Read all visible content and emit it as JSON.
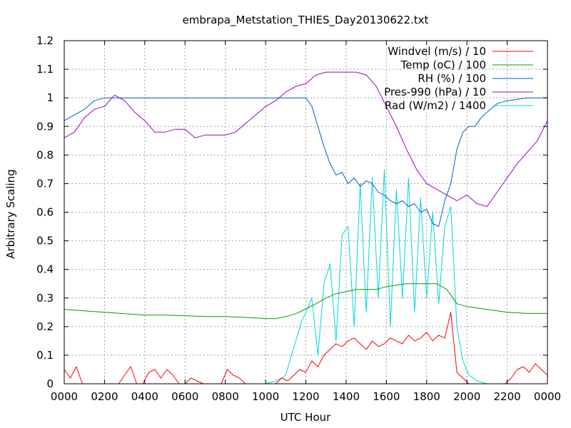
{
  "chart_data": {
    "type": "line",
    "title": "embrapa_Metstation_THIES_Day20130622.txt",
    "xlabel": "UTC Hour",
    "ylabel": "Arbitrary Scaling",
    "xlim": [
      0,
      2400
    ],
    "ylim": [
      0,
      1.2
    ],
    "grid": true,
    "legend_position": "top-right",
    "x_tick_labels": [
      "0000",
      "0200",
      "0400",
      "0600",
      "0800",
      "1000",
      "1200",
      "1400",
      "1600",
      "1800",
      "2000",
      "2200",
      "0000"
    ],
    "y_tick_labels": [
      "0",
      "0.1",
      "0.2",
      "0.3",
      "0.4",
      "0.5",
      "0.6",
      "0.7",
      "0.8",
      "0.9",
      "1",
      "1.1",
      "1.2"
    ],
    "series": [
      {
        "name": "Windvel (m/s) / 10",
        "color": "#ff0000",
        "x": [
          0,
          30,
          60,
          90,
          120,
          150,
          180,
          210,
          240,
          270,
          300,
          330,
          360,
          390,
          420,
          450,
          480,
          510,
          540,
          570,
          600,
          630,
          660,
          690,
          720,
          750,
          780,
          810,
          840,
          870,
          900,
          930,
          960,
          990,
          1020,
          1050,
          1080,
          1110,
          1140,
          1170,
          1200,
          1230,
          1260,
          1290,
          1320,
          1350,
          1380,
          1410,
          1440,
          1470,
          1500,
          1530,
          1560,
          1590,
          1620,
          1650,
          1680,
          1710,
          1740,
          1770,
          1800,
          1830,
          1860,
          1890,
          1920,
          1950,
          1980,
          2010,
          2040,
          2070,
          2100,
          2130,
          2160,
          2190,
          2220,
          2250,
          2280,
          2310,
          2340,
          2370,
          2400
        ],
        "y": [
          0.05,
          0.02,
          0.06,
          0,
          0,
          0,
          0,
          0,
          0,
          0,
          0.03,
          0.06,
          0,
          0,
          0.04,
          0.05,
          0.02,
          0.05,
          0.03,
          0,
          0,
          0.02,
          0.01,
          0,
          0,
          0,
          0,
          0.05,
          0.03,
          0.02,
          0,
          0,
          0,
          0,
          0,
          0,
          0.02,
          0.01,
          0.03,
          0.05,
          0.04,
          0.08,
          0.06,
          0.1,
          0.12,
          0.14,
          0.13,
          0.15,
          0.16,
          0.14,
          0.12,
          0.15,
          0.13,
          0.14,
          0.16,
          0.15,
          0.14,
          0.17,
          0.15,
          0.16,
          0.18,
          0.15,
          0.17,
          0.16,
          0.25,
          0.04,
          0.02,
          0,
          0,
          0,
          0,
          0,
          0,
          0,
          0.02,
          0.05,
          0.06,
          0.04,
          0.07,
          0.05,
          0.03
        ]
      },
      {
        "name": "Temp (oC) / 100",
        "color": "#00a000",
        "x": [
          0,
          100,
          200,
          300,
          400,
          500,
          600,
          700,
          800,
          900,
          1000,
          1050,
          1100,
          1150,
          1200,
          1250,
          1300,
          1350,
          1400,
          1450,
          1500,
          1550,
          1600,
          1650,
          1700,
          1750,
          1800,
          1850,
          1900,
          1950,
          2000,
          2100,
          2200,
          2300,
          2400
        ],
        "y": [
          0.26,
          0.255,
          0.25,
          0.245,
          0.24,
          0.24,
          0.238,
          0.235,
          0.235,
          0.232,
          0.228,
          0.228,
          0.235,
          0.245,
          0.262,
          0.28,
          0.3,
          0.315,
          0.322,
          0.33,
          0.33,
          0.33,
          0.34,
          0.345,
          0.35,
          0.35,
          0.35,
          0.35,
          0.33,
          0.28,
          0.27,
          0.26,
          0.25,
          0.246,
          0.246
        ]
      },
      {
        "name": "RH (%) / 100",
        "color": "#0060d0",
        "x": [
          0,
          50,
          100,
          150,
          200,
          300,
          400,
          600,
          800,
          1000,
          1100,
          1200,
          1230,
          1260,
          1290,
          1320,
          1350,
          1380,
          1410,
          1440,
          1470,
          1500,
          1530,
          1560,
          1590,
          1620,
          1650,
          1680,
          1710,
          1740,
          1770,
          1800,
          1830,
          1860,
          1890,
          1920,
          1950,
          1980,
          2010,
          2040,
          2070,
          2100,
          2150,
          2200,
          2300,
          2400
        ],
        "y": [
          0.92,
          0.94,
          0.96,
          0.99,
          1,
          1,
          1,
          1,
          1,
          1,
          1,
          1,
          0.97,
          0.9,
          0.83,
          0.77,
          0.73,
          0.74,
          0.7,
          0.72,
          0.69,
          0.71,
          0.7,
          0.67,
          0.66,
          0.64,
          0.63,
          0.64,
          0.62,
          0.63,
          0.6,
          0.61,
          0.56,
          0.55,
          0.64,
          0.7,
          0.82,
          0.88,
          0.9,
          0.9,
          0.93,
          0.95,
          0.98,
          0.99,
          1,
          1
        ]
      },
      {
        "name": "Pres-990 (hPa) / 10",
        "color": "#9900cc",
        "x": [
          0,
          50,
          100,
          150,
          200,
          250,
          300,
          350,
          400,
          450,
          500,
          550,
          600,
          650,
          700,
          750,
          800,
          850,
          900,
          950,
          1000,
          1050,
          1100,
          1150,
          1200,
          1250,
          1300,
          1350,
          1400,
          1450,
          1500,
          1550,
          1600,
          1650,
          1700,
          1750,
          1800,
          1850,
          1900,
          1950,
          2000,
          2050,
          2100,
          2150,
          2200,
          2250,
          2300,
          2350,
          2400
        ],
        "y": [
          0.86,
          0.88,
          0.93,
          0.96,
          0.97,
          1.01,
          0.99,
          0.95,
          0.92,
          0.88,
          0.88,
          0.89,
          0.89,
          0.86,
          0.87,
          0.87,
          0.87,
          0.88,
          0.91,
          0.94,
          0.97,
          0.99,
          1.02,
          1.04,
          1.05,
          1.08,
          1.09,
          1.09,
          1.09,
          1.09,
          1.08,
          1.04,
          0.97,
          0.9,
          0.82,
          0.75,
          0.7,
          0.68,
          0.66,
          0.64,
          0.66,
          0.63,
          0.62,
          0.67,
          0.72,
          0.77,
          0.81,
          0.85,
          0.92
        ]
      },
      {
        "name": "Rad (W/m2) / 1400",
        "color": "#00d8d8",
        "x": [
          0,
          500,
          1000,
          1050,
          1080,
          1100,
          1120,
          1150,
          1180,
          1200,
          1230,
          1260,
          1290,
          1320,
          1350,
          1380,
          1410,
          1440,
          1470,
          1500,
          1530,
          1560,
          1590,
          1620,
          1650,
          1680,
          1710,
          1740,
          1770,
          1800,
          1830,
          1860,
          1890,
          1920,
          1950,
          1980,
          2010,
          2050,
          2100,
          2400
        ],
        "y": [
          0,
          0,
          0,
          0.01,
          0.02,
          0.03,
          0.08,
          0.15,
          0.22,
          0.25,
          0.3,
          0.1,
          0.35,
          0.42,
          0.15,
          0.52,
          0.55,
          0.2,
          0.7,
          0.25,
          0.72,
          0.3,
          0.75,
          0.2,
          0.68,
          0.3,
          0.72,
          0.25,
          0.65,
          0.3,
          0.6,
          0.28,
          0.55,
          0.62,
          0.2,
          0.08,
          0.03,
          0.01,
          0,
          0
        ]
      }
    ]
  }
}
